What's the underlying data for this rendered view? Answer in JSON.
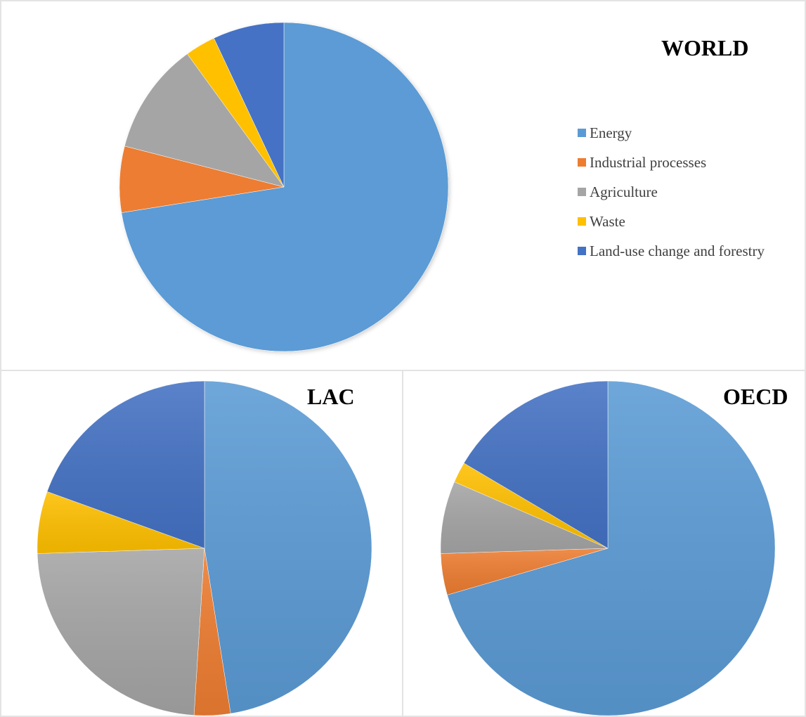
{
  "colors": {
    "Energy": "#5b9bd5",
    "Industrial processes": "#ed7d31",
    "Agriculture": "#a5a5a5",
    "Waste": "#ffc000",
    "Land-use change and forestry": "#4472c4"
  },
  "legend": {
    "items": [
      {
        "label": "Energy",
        "color": "#5b9bd5"
      },
      {
        "label": "Industrial processes",
        "color": "#ed7d31"
      },
      {
        "label": "Agriculture",
        "color": "#a5a5a5"
      },
      {
        "label": "Waste",
        "color": "#ffc000"
      },
      {
        "label": "Land-use change and forestry",
        "color": "#4472c4"
      }
    ]
  },
  "chart_data": [
    {
      "type": "pie",
      "title": "WORLD",
      "categories": [
        "Energy",
        "Industrial processes",
        "Agriculture",
        "Waste",
        "Land-use change and forestry"
      ],
      "values": [
        72.5,
        6.5,
        11,
        3,
        7
      ],
      "legend_position": "right"
    },
    {
      "type": "pie",
      "title": "LAC",
      "categories": [
        "Energy",
        "Industrial processes",
        "Agriculture",
        "Waste",
        "Land-use change and forestry"
      ],
      "values": [
        47.5,
        3.5,
        23.5,
        6,
        19.5
      ]
    },
    {
      "type": "pie",
      "title": "OECD",
      "categories": [
        "Energy",
        "Industrial processes",
        "Agriculture",
        "Waste",
        "Land-use change and forestry"
      ],
      "values": [
        70.5,
        4,
        7,
        2,
        16.5
      ]
    }
  ]
}
